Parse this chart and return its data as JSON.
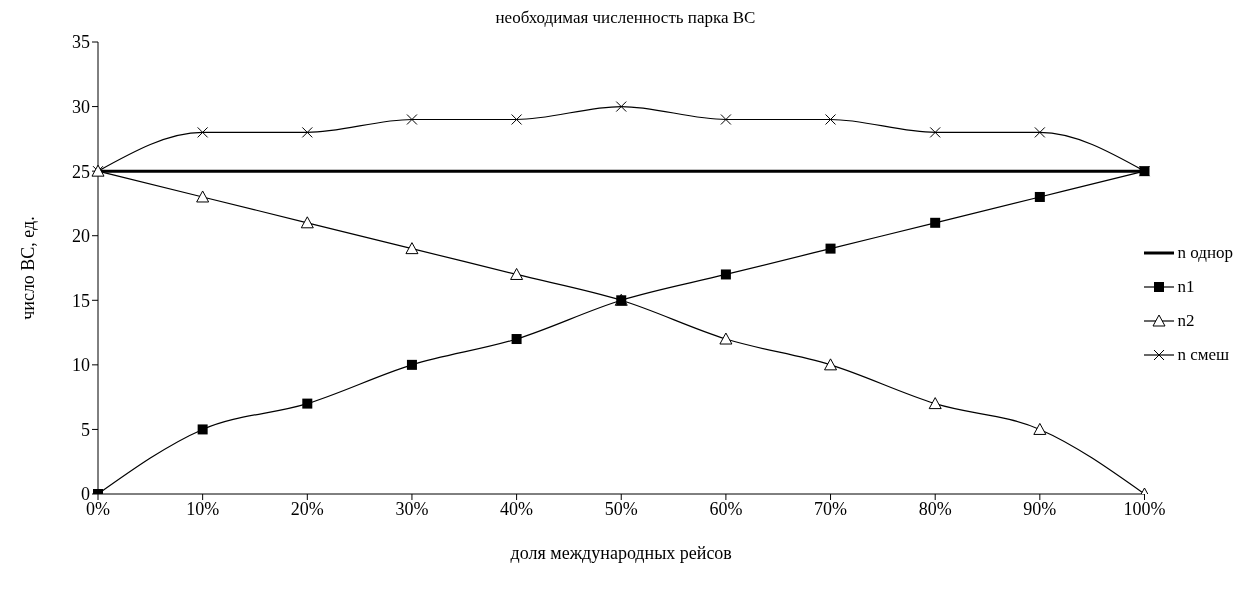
{
  "chart_data": {
    "type": "line",
    "title": "необходимая численность парка ВС",
    "xlabel": "доля международных рейсов",
    "ylabel": "число ВС, ед.",
    "categories": [
      "0%",
      "10%",
      "20%",
      "30%",
      "40%",
      "50%",
      "60%",
      "70%",
      "80%",
      "90%",
      "100%"
    ],
    "series": [
      {
        "name": "n однор",
        "color": "#000000",
        "marker": "none",
        "values": [
          25,
          25,
          25,
          25,
          25,
          25,
          25,
          25,
          25,
          25,
          25
        ]
      },
      {
        "name": "n1",
        "color": "#000000",
        "marker": "square",
        "values": [
          0,
          5,
          7,
          10,
          12,
          15,
          17,
          19,
          21,
          23,
          25
        ]
      },
      {
        "name": "n2",
        "color": "#000000",
        "marker": "triangle",
        "values": [
          25,
          23,
          21,
          19,
          17,
          15,
          12,
          10,
          7,
          5,
          0
        ]
      },
      {
        "name": "n смеш",
        "color": "#000000",
        "marker": "cross",
        "values": [
          25,
          28,
          28,
          29,
          29,
          30,
          29,
          29,
          28,
          28,
          25
        ]
      }
    ],
    "ylim": [
      0,
      35
    ],
    "yticks": [
      0,
      5,
      10,
      15,
      20,
      25,
      30,
      35
    ],
    "grid": false,
    "legend": "right"
  }
}
